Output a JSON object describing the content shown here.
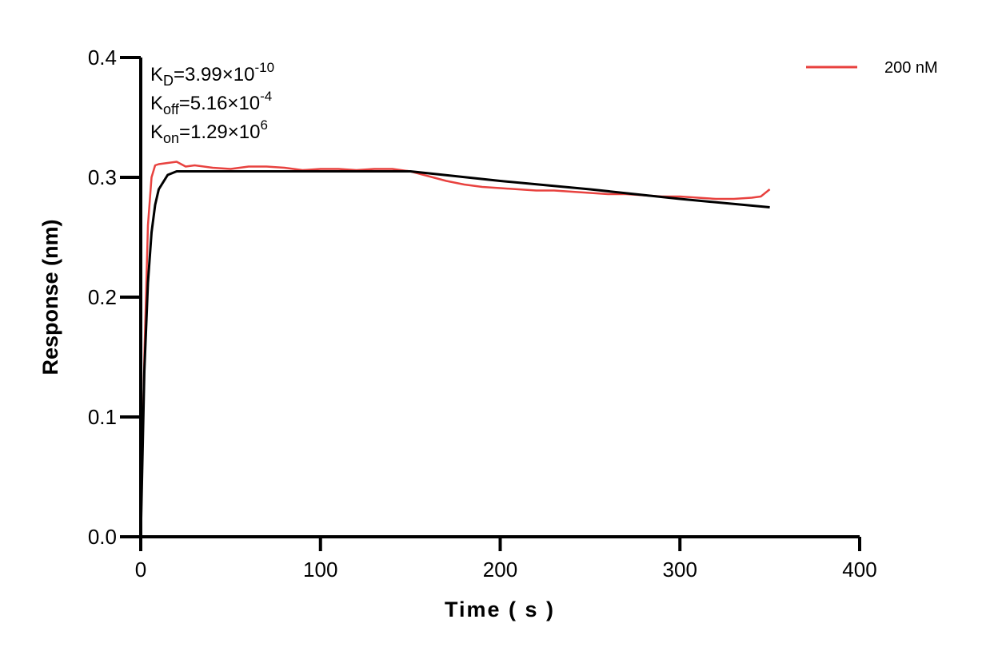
{
  "chart_data": {
    "type": "line",
    "title": "",
    "xlabel": "Time ( s )",
    "ylabel": "Response (nm)",
    "xlim": [
      0,
      400
    ],
    "ylim": [
      0,
      0.4
    ],
    "xticks": [
      0,
      100,
      200,
      300,
      400
    ],
    "xtick_labels": [
      "0",
      "100",
      "200",
      "300",
      "400"
    ],
    "yticks": [
      0,
      0.1,
      0.2,
      0.3,
      0.4
    ],
    "ytick_labels": [
      "0.0",
      "0.1",
      "0.2",
      "0.3",
      "0.4"
    ],
    "grid": false,
    "legend_placement": "top-right",
    "annotations": [
      {
        "base": "K",
        "sub": "D",
        "value": "=3.99×10",
        "exp": "-10"
      },
      {
        "base": "K",
        "sub": "off",
        "value": "=5.16×10",
        "exp": "-4"
      },
      {
        "base": "K",
        "sub": "on",
        "value": "=1.29×10",
        "exp": "6"
      }
    ],
    "series": [
      {
        "name": "200 nM",
        "color": "#e8423f",
        "x": [
          0,
          2,
          4,
          6,
          8,
          10,
          15,
          20,
          25,
          30,
          40,
          50,
          60,
          70,
          80,
          90,
          100,
          110,
          120,
          130,
          140,
          150,
          160,
          170,
          180,
          190,
          200,
          210,
          220,
          230,
          240,
          250,
          260,
          270,
          280,
          290,
          300,
          310,
          320,
          330,
          340,
          345,
          350
        ],
        "y": [
          0,
          0.15,
          0.26,
          0.3,
          0.31,
          0.311,
          0.312,
          0.313,
          0.309,
          0.31,
          0.308,
          0.307,
          0.309,
          0.309,
          0.308,
          0.306,
          0.307,
          0.307,
          0.306,
          0.307,
          0.307,
          0.305,
          0.301,
          0.297,
          0.294,
          0.292,
          0.291,
          0.29,
          0.289,
          0.289,
          0.288,
          0.287,
          0.286,
          0.286,
          0.285,
          0.284,
          0.284,
          0.283,
          0.282,
          0.282,
          0.283,
          0.284,
          0.29
        ]
      },
      {
        "color": "#000000",
        "x": [
          0,
          2,
          4,
          6,
          8,
          10,
          15,
          20,
          30,
          150,
          200,
          250,
          300,
          350
        ],
        "y": [
          0,
          0.138,
          0.212,
          0.254,
          0.277,
          0.29,
          0.302,
          0.305,
          0.305,
          0.305,
          0.297,
          0.29,
          0.282,
          0.275
        ]
      }
    ]
  }
}
